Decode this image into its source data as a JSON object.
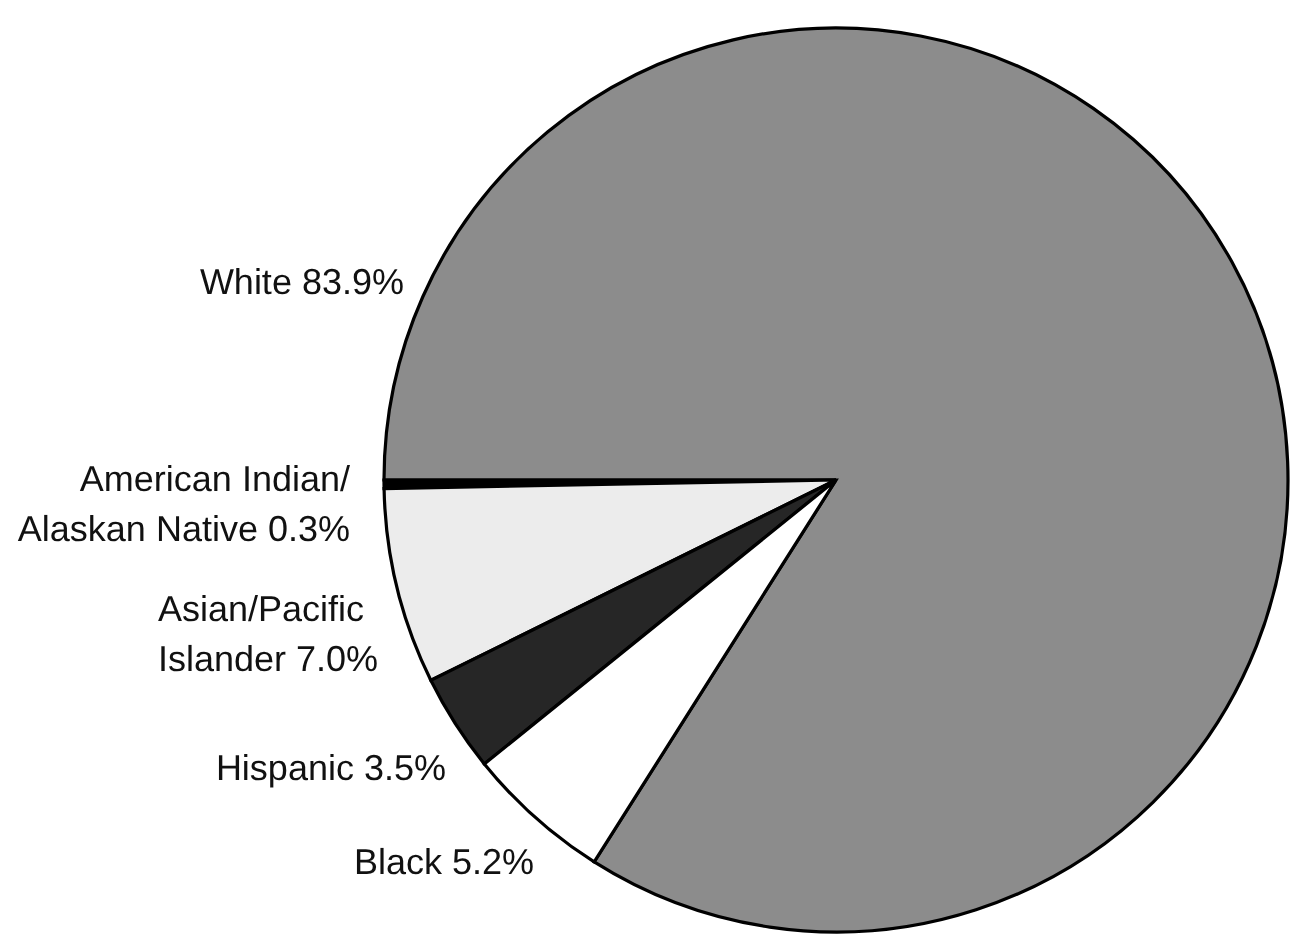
{
  "chart_data": {
    "type": "pie",
    "categories": [
      "White",
      "American Indian/Alaskan Native",
      "Asian/Pacific Islander",
      "Hispanic",
      "Black"
    ],
    "values": [
      83.9,
      0.3,
      7.0,
      3.5,
      5.2
    ],
    "value_labels": [
      "83.9%",
      "0.3%",
      "7.0%",
      "3.5%",
      "5.2%"
    ],
    "colors": [
      "#8c8c8c",
      "#000000",
      "#ececec",
      "#262626",
      "#ffffff"
    ]
  }
}
